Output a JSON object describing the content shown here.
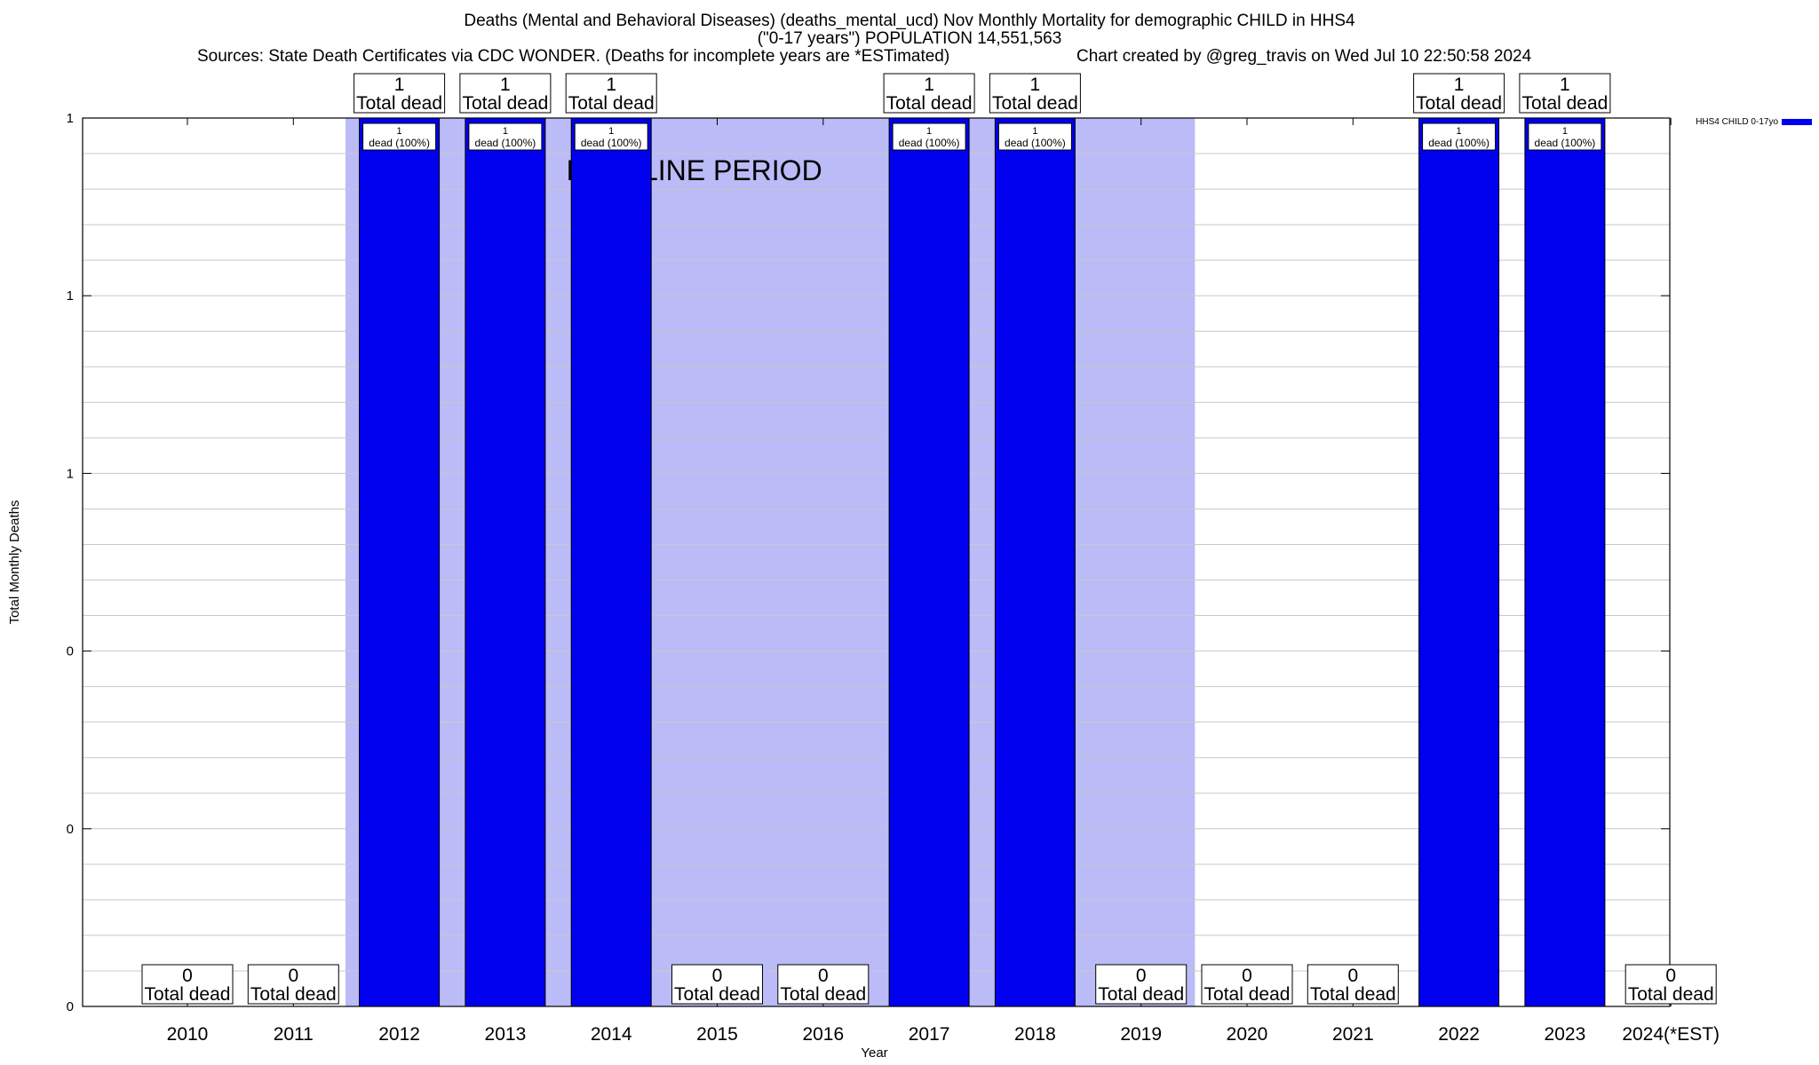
{
  "title": {
    "line1": "Deaths (Mental and Behavioral Diseases) (deaths_mental_ucd) Nov Monthly Mortality for demographic CHILD in HHS4",
    "line2": "(\"0-17 years\") POPULATION 14,551,563",
    "sources": "Sources: State Death Certificates via CDC WONDER. (Deaths for incomplete years are *ESTimated)",
    "credit": "Chart created by @greg_travis on Wed Jul 10 22:50:58 2024"
  },
  "chart_data": {
    "type": "bar",
    "xlabel": "Year",
    "ylabel": "Total Monthly Deaths",
    "ylim": [
      0,
      1
    ],
    "ytick_labels": [
      "0",
      "0",
      "0",
      "1",
      "1",
      "1"
    ],
    "categories": [
      "2010",
      "2011",
      "2012",
      "2013",
      "2014",
      "2015",
      "2016",
      "2017",
      "2018",
      "2019",
      "2020",
      "2021",
      "2022",
      "2023",
      "2024(*EST)"
    ],
    "series": [
      {
        "name": "HHS4 CHILD 0-17yo",
        "color": "#0000ee",
        "values": [
          0,
          0,
          1,
          1,
          1,
          0,
          0,
          1,
          1,
          0,
          0,
          0,
          1,
          1,
          0
        ]
      }
    ],
    "total_labels": {
      "values": [
        "0",
        "0",
        "1",
        "1",
        "1",
        "0",
        "0",
        "1",
        "1",
        "0",
        "0",
        "0",
        "1",
        "1",
        "0"
      ],
      "suffix": "Total dead"
    },
    "bar_labels": [
      {
        "category": "2012",
        "value": "1",
        "text": "dead (100%)"
      },
      {
        "category": "2013",
        "value": "1",
        "text": "dead (100%)"
      },
      {
        "category": "2014",
        "value": "1",
        "text": "dead (100%)"
      },
      {
        "category": "2017",
        "value": "1",
        "text": "dead (100%)"
      },
      {
        "category": "2018",
        "value": "1",
        "text": "dead (100%)"
      },
      {
        "category": "2022",
        "value": "1",
        "text": "dead (100%)"
      },
      {
        "category": "2023",
        "value": "1",
        "text": "dead (100%)"
      }
    ],
    "baseline_period": {
      "label": "BASELINE PERIOD",
      "from": "2012",
      "to": "2019",
      "color": "#bbbbf7"
    },
    "legend": {
      "position": "top-right",
      "label": "HHS4 CHILD 0-17yo"
    },
    "grid": true
  }
}
